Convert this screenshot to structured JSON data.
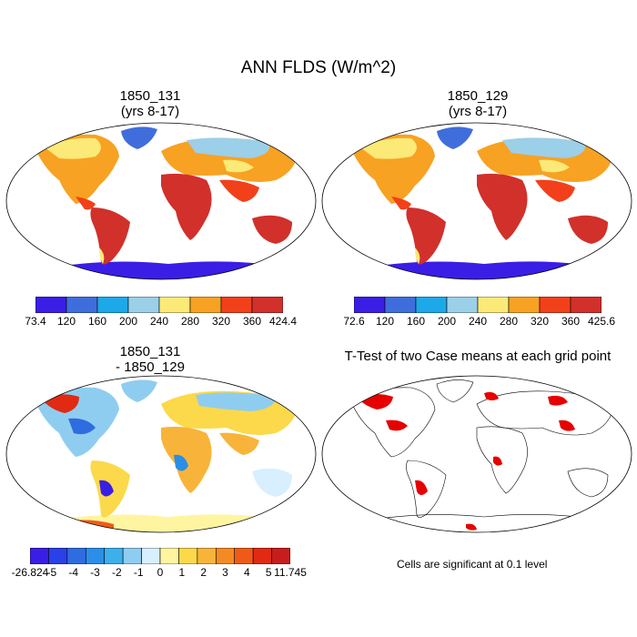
{
  "title": "ANN FLDS (W/m^2)",
  "panels": [
    {
      "id": "p1",
      "title_line1": "1850_131",
      "title_line2": "(yrs 8-17)"
    },
    {
      "id": "p2",
      "title_line1": "1850_129",
      "title_line2": "(yrs 8-17)"
    },
    {
      "id": "p3",
      "title_line1": "1850_131",
      "title_line2": "- 1850_129"
    },
    {
      "id": "p4",
      "title_line1": "T-Test of two Case means at each grid point",
      "title_line2": ""
    }
  ],
  "colorbar1": {
    "colors": [
      "#3a1ee6",
      "#3f6edc",
      "#1da8ea",
      "#9ccfe8",
      "#fbe978",
      "#f7a222",
      "#f2401a",
      "#d1302b"
    ],
    "labels": [
      "73.4",
      "120",
      "160",
      "200",
      "240",
      "280",
      "320",
      "360",
      "424.4"
    ]
  },
  "colorbar2": {
    "colors": [
      "#3a1ee6",
      "#3f6edc",
      "#1da8ea",
      "#9ccfe8",
      "#fbe978",
      "#f7a222",
      "#f2401a",
      "#d1302b"
    ],
    "labels": [
      "72.6",
      "120",
      "160",
      "200",
      "240",
      "280",
      "320",
      "360",
      "425.6"
    ]
  },
  "colorbar3": {
    "colors": [
      "#3a1ee6",
      "#2a40e8",
      "#2f6ce0",
      "#2b8ee8",
      "#3cb0ea",
      "#8fcdf0",
      "#d8efff",
      "#fff5a0",
      "#fbd94a",
      "#f8b43a",
      "#f58a22",
      "#f05a18",
      "#e02a14",
      "#c81d1d"
    ],
    "labels": [
      "-26.824",
      "-5",
      "-4",
      "-3",
      "-2",
      "-1",
      "0",
      "1",
      "2",
      "3",
      "4",
      "5",
      "11.745"
    ]
  },
  "significance_note": "Cells are significant at 0.1 level"
}
